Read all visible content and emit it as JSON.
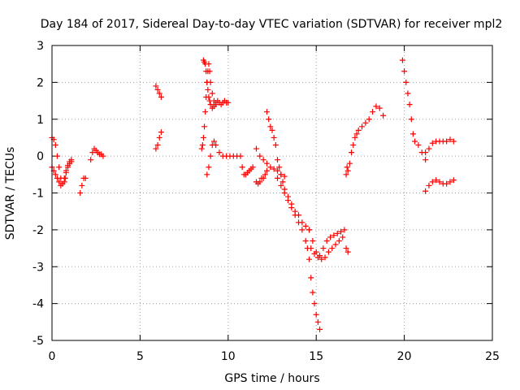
{
  "chart_data": {
    "type": "scatter",
    "title": "Day 184 of 2017, Sidereal Day-to-day VTEC variation (SDTVAR) for receiver mpl2",
    "xlabel": "GPS time / hours",
    "ylabel": "SDTVAR / TECUs",
    "xlim": [
      0,
      25
    ],
    "ylim": [
      -5,
      3
    ],
    "xticks": [
      0,
      5,
      10,
      15,
      20,
      25
    ],
    "yticks": [
      -5,
      -4,
      -3,
      -2,
      -1,
      0,
      1,
      2,
      3
    ],
    "grid": true,
    "legend": "none",
    "marker": "+",
    "color": "#ff0000",
    "series": [
      {
        "x": [
          0.0,
          0.1,
          0.2,
          0.3,
          0.4,
          0.5,
          0.6,
          0.7,
          0.75,
          0.8,
          0.9,
          1.0,
          1.1,
          0.0,
          0.1,
          0.2,
          0.3,
          0.4,
          0.5,
          0.6,
          0.7,
          0.8,
          0.9,
          1.0,
          1.1,
          1.6,
          1.7,
          1.8,
          1.9,
          2.2,
          2.3,
          2.4,
          2.5,
          2.6,
          2.7,
          2.8,
          2.9,
          5.9,
          6.0,
          6.1,
          6.2,
          5.9,
          6.0,
          6.1,
          6.2,
          8.6,
          8.65,
          8.7,
          8.75,
          8.8,
          8.85,
          8.9,
          8.95,
          9.0,
          9.1,
          9.2,
          9.3,
          9.4,
          9.5,
          9.6,
          9.7,
          9.8,
          9.9,
          10.0,
          8.5,
          8.55,
          8.6,
          8.65,
          8.7,
          8.75,
          8.8,
          8.85,
          8.9,
          8.95,
          9.0,
          9.1,
          9.2,
          9.3,
          8.8,
          8.9,
          9.0,
          9.1,
          9.2,
          9.3,
          9.5,
          9.7,
          9.9,
          10.1,
          10.3,
          10.5,
          10.7,
          10.8,
          10.9,
          11.0,
          11.1,
          11.2,
          11.3,
          11.4,
          11.6,
          11.7,
          11.8,
          11.9,
          12.0,
          12.1,
          12.2,
          11.6,
          11.8,
          12.0,
          12.2,
          12.4,
          12.6,
          12.8,
          13.0,
          13.2,
          12.2,
          12.3,
          12.4,
          12.5,
          12.6,
          12.7,
          12.8,
          12.9,
          13.0,
          13.1,
          13.2,
          13.4,
          13.6,
          13.8,
          14.0,
          14.2,
          14.4,
          14.6,
          12.8,
          13.0,
          13.2,
          13.4,
          13.6,
          13.8,
          14.0,
          14.2,
          14.4,
          14.5,
          14.6,
          14.7,
          14.8,
          14.9,
          15.0,
          15.1,
          15.2,
          14.7,
          14.9,
          15.1,
          15.3,
          15.5,
          15.7,
          15.9,
          16.1,
          16.3,
          16.5,
          14.6,
          14.8,
          15.0,
          15.2,
          15.4,
          15.6,
          15.8,
          16.0,
          16.2,
          16.4,
          16.6,
          16.7,
          16.8,
          16.7,
          16.75,
          16.8,
          16.9,
          17.0,
          17.1,
          17.2,
          17.3,
          17.4,
          17.6,
          17.8,
          18.0,
          18.2,
          18.4,
          18.6,
          18.8,
          19.9,
          20.0,
          20.1,
          20.2,
          20.3,
          20.4,
          20.5,
          20.6,
          20.8,
          21.0,
          21.2,
          21.2,
          21.4,
          21.6,
          21.8,
          22.0,
          22.2,
          22.4,
          22.6,
          22.8,
          21.2,
          21.4,
          21.6,
          21.8,
          22.0,
          22.2,
          22.4,
          22.6,
          22.8
        ],
        "y": [
          0.5,
          0.45,
          0.3,
          0.0,
          -0.3,
          -0.6,
          -0.75,
          -0.7,
          -0.6,
          -0.45,
          -0.3,
          -0.2,
          -0.15,
          -0.3,
          -0.4,
          -0.5,
          -0.6,
          -0.7,
          -0.8,
          -0.75,
          -0.6,
          -0.4,
          -0.25,
          -0.15,
          -0.1,
          -1.0,
          -0.8,
          -0.6,
          -0.6,
          -0.1,
          0.1,
          0.2,
          0.15,
          0.1,
          0.05,
          0.05,
          0.0,
          1.9,
          1.8,
          1.7,
          1.6,
          0.2,
          0.3,
          0.5,
          0.65,
          2.6,
          2.55,
          2.5,
          2.3,
          2.0,
          1.8,
          1.6,
          1.5,
          1.4,
          1.3,
          1.35,
          1.4,
          1.5,
          1.45,
          1.4,
          1.45,
          1.5,
          1.45,
          1.45,
          0.2,
          0.3,
          0.5,
          0.8,
          1.2,
          1.6,
          2.0,
          2.3,
          2.5,
          2.3,
          2.0,
          1.7,
          1.5,
          1.45,
          -0.5,
          -0.3,
          0.0,
          0.3,
          0.4,
          0.3,
          0.1,
          0.0,
          0.0,
          0.0,
          0.0,
          0.0,
          0.0,
          -0.3,
          -0.5,
          -0.5,
          -0.45,
          -0.4,
          -0.35,
          -0.3,
          -0.7,
          -0.75,
          -0.7,
          -0.6,
          -0.6,
          -0.5,
          -0.4,
          0.2,
          0.0,
          -0.1,
          -0.2,
          -0.3,
          -0.35,
          -0.4,
          -0.5,
          -0.55,
          1.2,
          1.0,
          0.8,
          0.7,
          0.5,
          0.3,
          -0.1,
          -0.3,
          -0.5,
          -0.7,
          -0.9,
          -1.1,
          -1.3,
          -1.5,
          -1.6,
          -1.8,
          -1.9,
          -2.0,
          -0.6,
          -0.8,
          -1.0,
          -1.2,
          -1.4,
          -1.6,
          -1.8,
          -2.0,
          -2.3,
          -2.5,
          -2.8,
          -3.3,
          -3.7,
          -4.0,
          -4.3,
          -4.5,
          -4.7,
          -2.5,
          -2.65,
          -2.75,
          -2.8,
          -2.75,
          -2.6,
          -2.5,
          -2.4,
          -2.3,
          -2.2,
          -2.0,
          -2.3,
          -2.6,
          -2.7,
          -2.5,
          -2.3,
          -2.2,
          -2.15,
          -2.1,
          -2.05,
          -2.0,
          -2.5,
          -2.6,
          -0.5,
          -0.3,
          -0.4,
          -0.2,
          0.1,
          0.3,
          0.5,
          0.6,
          0.7,
          0.8,
          0.9,
          1.0,
          1.2,
          1.35,
          1.3,
          1.1,
          2.6,
          2.3,
          2.0,
          1.7,
          1.4,
          1.0,
          0.6,
          0.4,
          0.3,
          0.1,
          -0.1,
          0.1,
          0.2,
          0.35,
          0.4,
          0.4,
          0.4,
          0.4,
          0.45,
          0.4,
          -0.95,
          -0.8,
          -0.7,
          -0.65,
          -0.7,
          -0.75,
          -0.75,
          -0.7,
          -0.65
        ]
      }
    ]
  }
}
